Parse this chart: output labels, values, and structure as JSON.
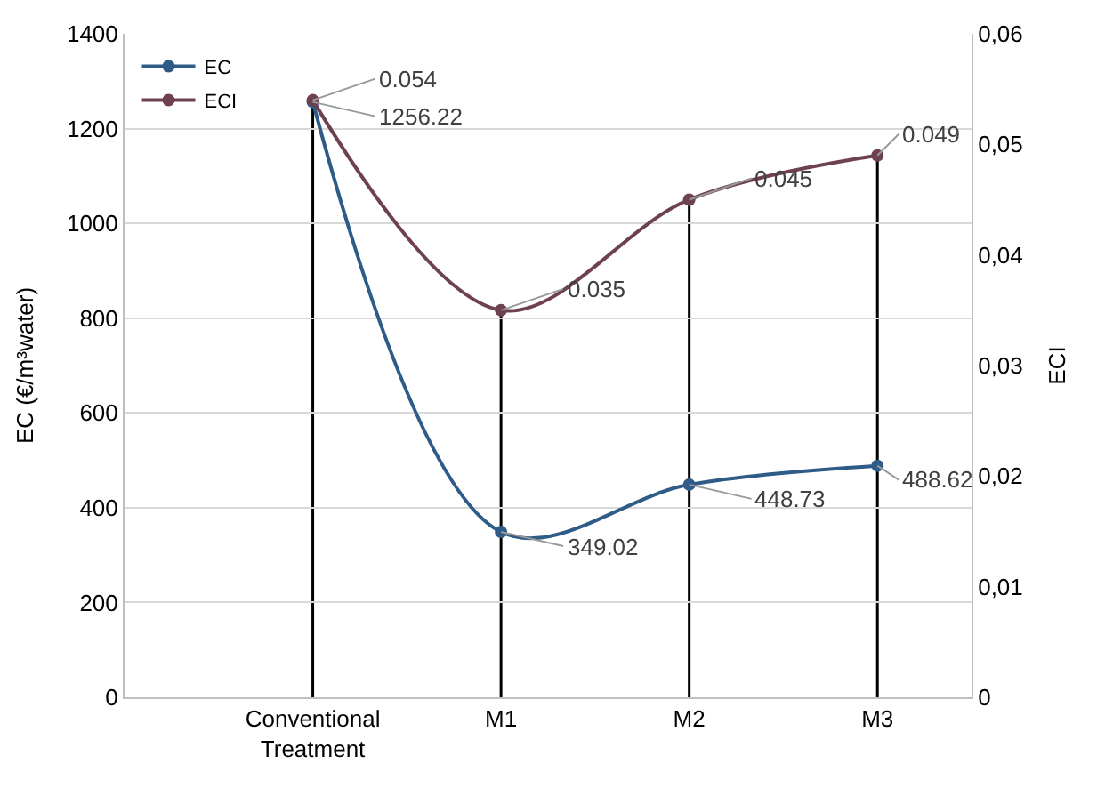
{
  "chart_data": {
    "type": "line",
    "categories": [
      "Conventional Treatment",
      "M1",
      "M2",
      "M3"
    ],
    "series": [
      {
        "name": "EC",
        "color": "#2e5b87",
        "values": [
          1256.22,
          349.02,
          448.73,
          488.62
        ]
      },
      {
        "name": "ECI",
        "color": "#6e4150",
        "values": [
          0.054,
          0.035,
          0.045,
          0.049
        ],
        "axis": "y2"
      }
    ],
    "ylabel": "EC (€/m³water)",
    "y2label": "ECI",
    "ylim": [
      0,
      1400
    ],
    "yticks": [
      0,
      200,
      400,
      600,
      800,
      1000,
      1200,
      1400
    ],
    "y2lim": [
      0,
      0.06
    ],
    "y2ticks": [
      0,
      {
        "value": 0.01,
        "label": "0,01"
      },
      {
        "value": 0.02,
        "label": "0,02"
      },
      {
        "value": 0.03,
        "label": "0,03"
      },
      {
        "value": 0.04,
        "label": "0,04"
      },
      {
        "value": 0.05,
        "label": "0,05"
      },
      {
        "value": 0.06,
        "label": "0,06"
      }
    ],
    "ref_lines": [
      {
        "axis": "x",
        "value": "Conventional Treatment",
        "color": "#000000"
      },
      {
        "axis": "x",
        "value": "M1",
        "color": "#000000"
      },
      {
        "axis": "x",
        "value": "M2",
        "color": "#000000"
      },
      {
        "axis": "x",
        "value": "M3",
        "color": "#000000"
      }
    ],
    "grid": "y",
    "legend": "top left",
    "marker": "circle",
    "line_style": "solid",
    "data_labels": true
  }
}
